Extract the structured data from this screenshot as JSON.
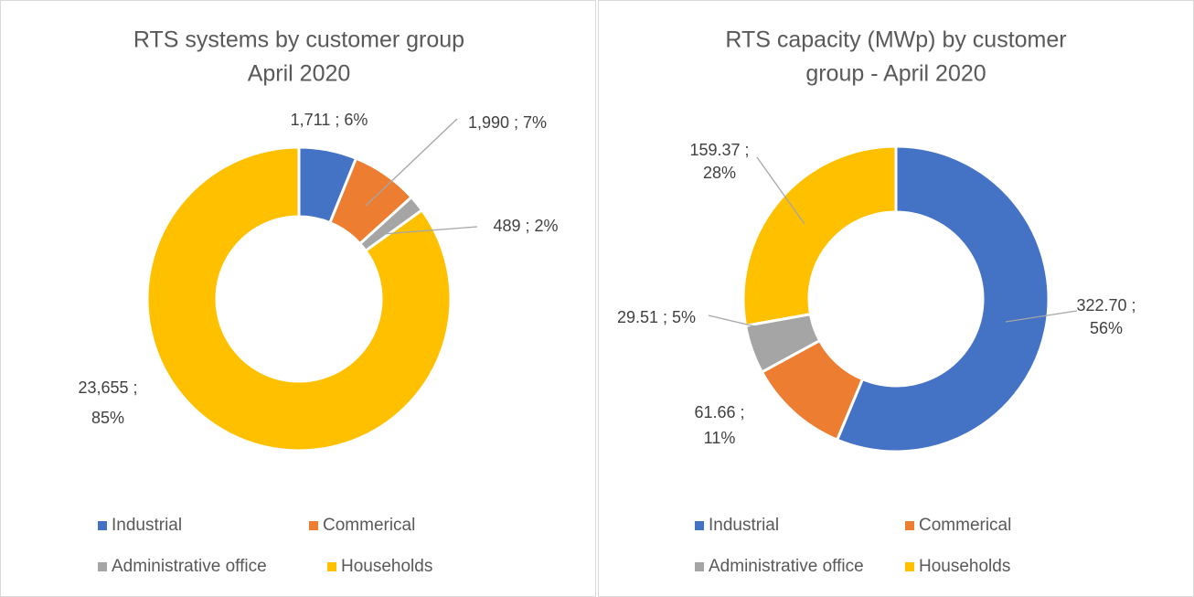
{
  "chart_data": [
    {
      "type": "donut",
      "title": [
        "RTS systems by customer group",
        "April 2020"
      ],
      "categories": [
        "Industrial",
        "Commerical",
        "Administrative office",
        "Households"
      ],
      "values": [
        1711,
        1990,
        489,
        23655
      ],
      "value_labels": [
        [
          "1,711 ; 6%"
        ],
        [
          "1,990 ; 7%"
        ],
        [
          "489 ; 2%"
        ],
        [
          "23,655 ;",
          "85%"
        ]
      ],
      "colors": [
        "#4472c4",
        "#ed7d31",
        "#a5a5a5",
        "#ffc000"
      ],
      "legend": "bottom"
    },
    {
      "type": "donut",
      "title": [
        "RTS capacity (MWp) by customer",
        "group - April 2020"
      ],
      "categories": [
        "Industrial",
        "Commerical",
        "Administrative office",
        "Households"
      ],
      "values": [
        322.7,
        61.66,
        29.51,
        159.37
      ],
      "value_labels": [
        [
          "322.70 ;",
          "56%"
        ],
        [
          "61.66 ;",
          "11%"
        ],
        [
          "29.51 ; 5%"
        ],
        [
          "159.37 ;",
          "28%"
        ]
      ],
      "colors": [
        "#4472c4",
        "#ed7d31",
        "#a5a5a5",
        "#ffc000"
      ],
      "legend": "bottom"
    }
  ]
}
